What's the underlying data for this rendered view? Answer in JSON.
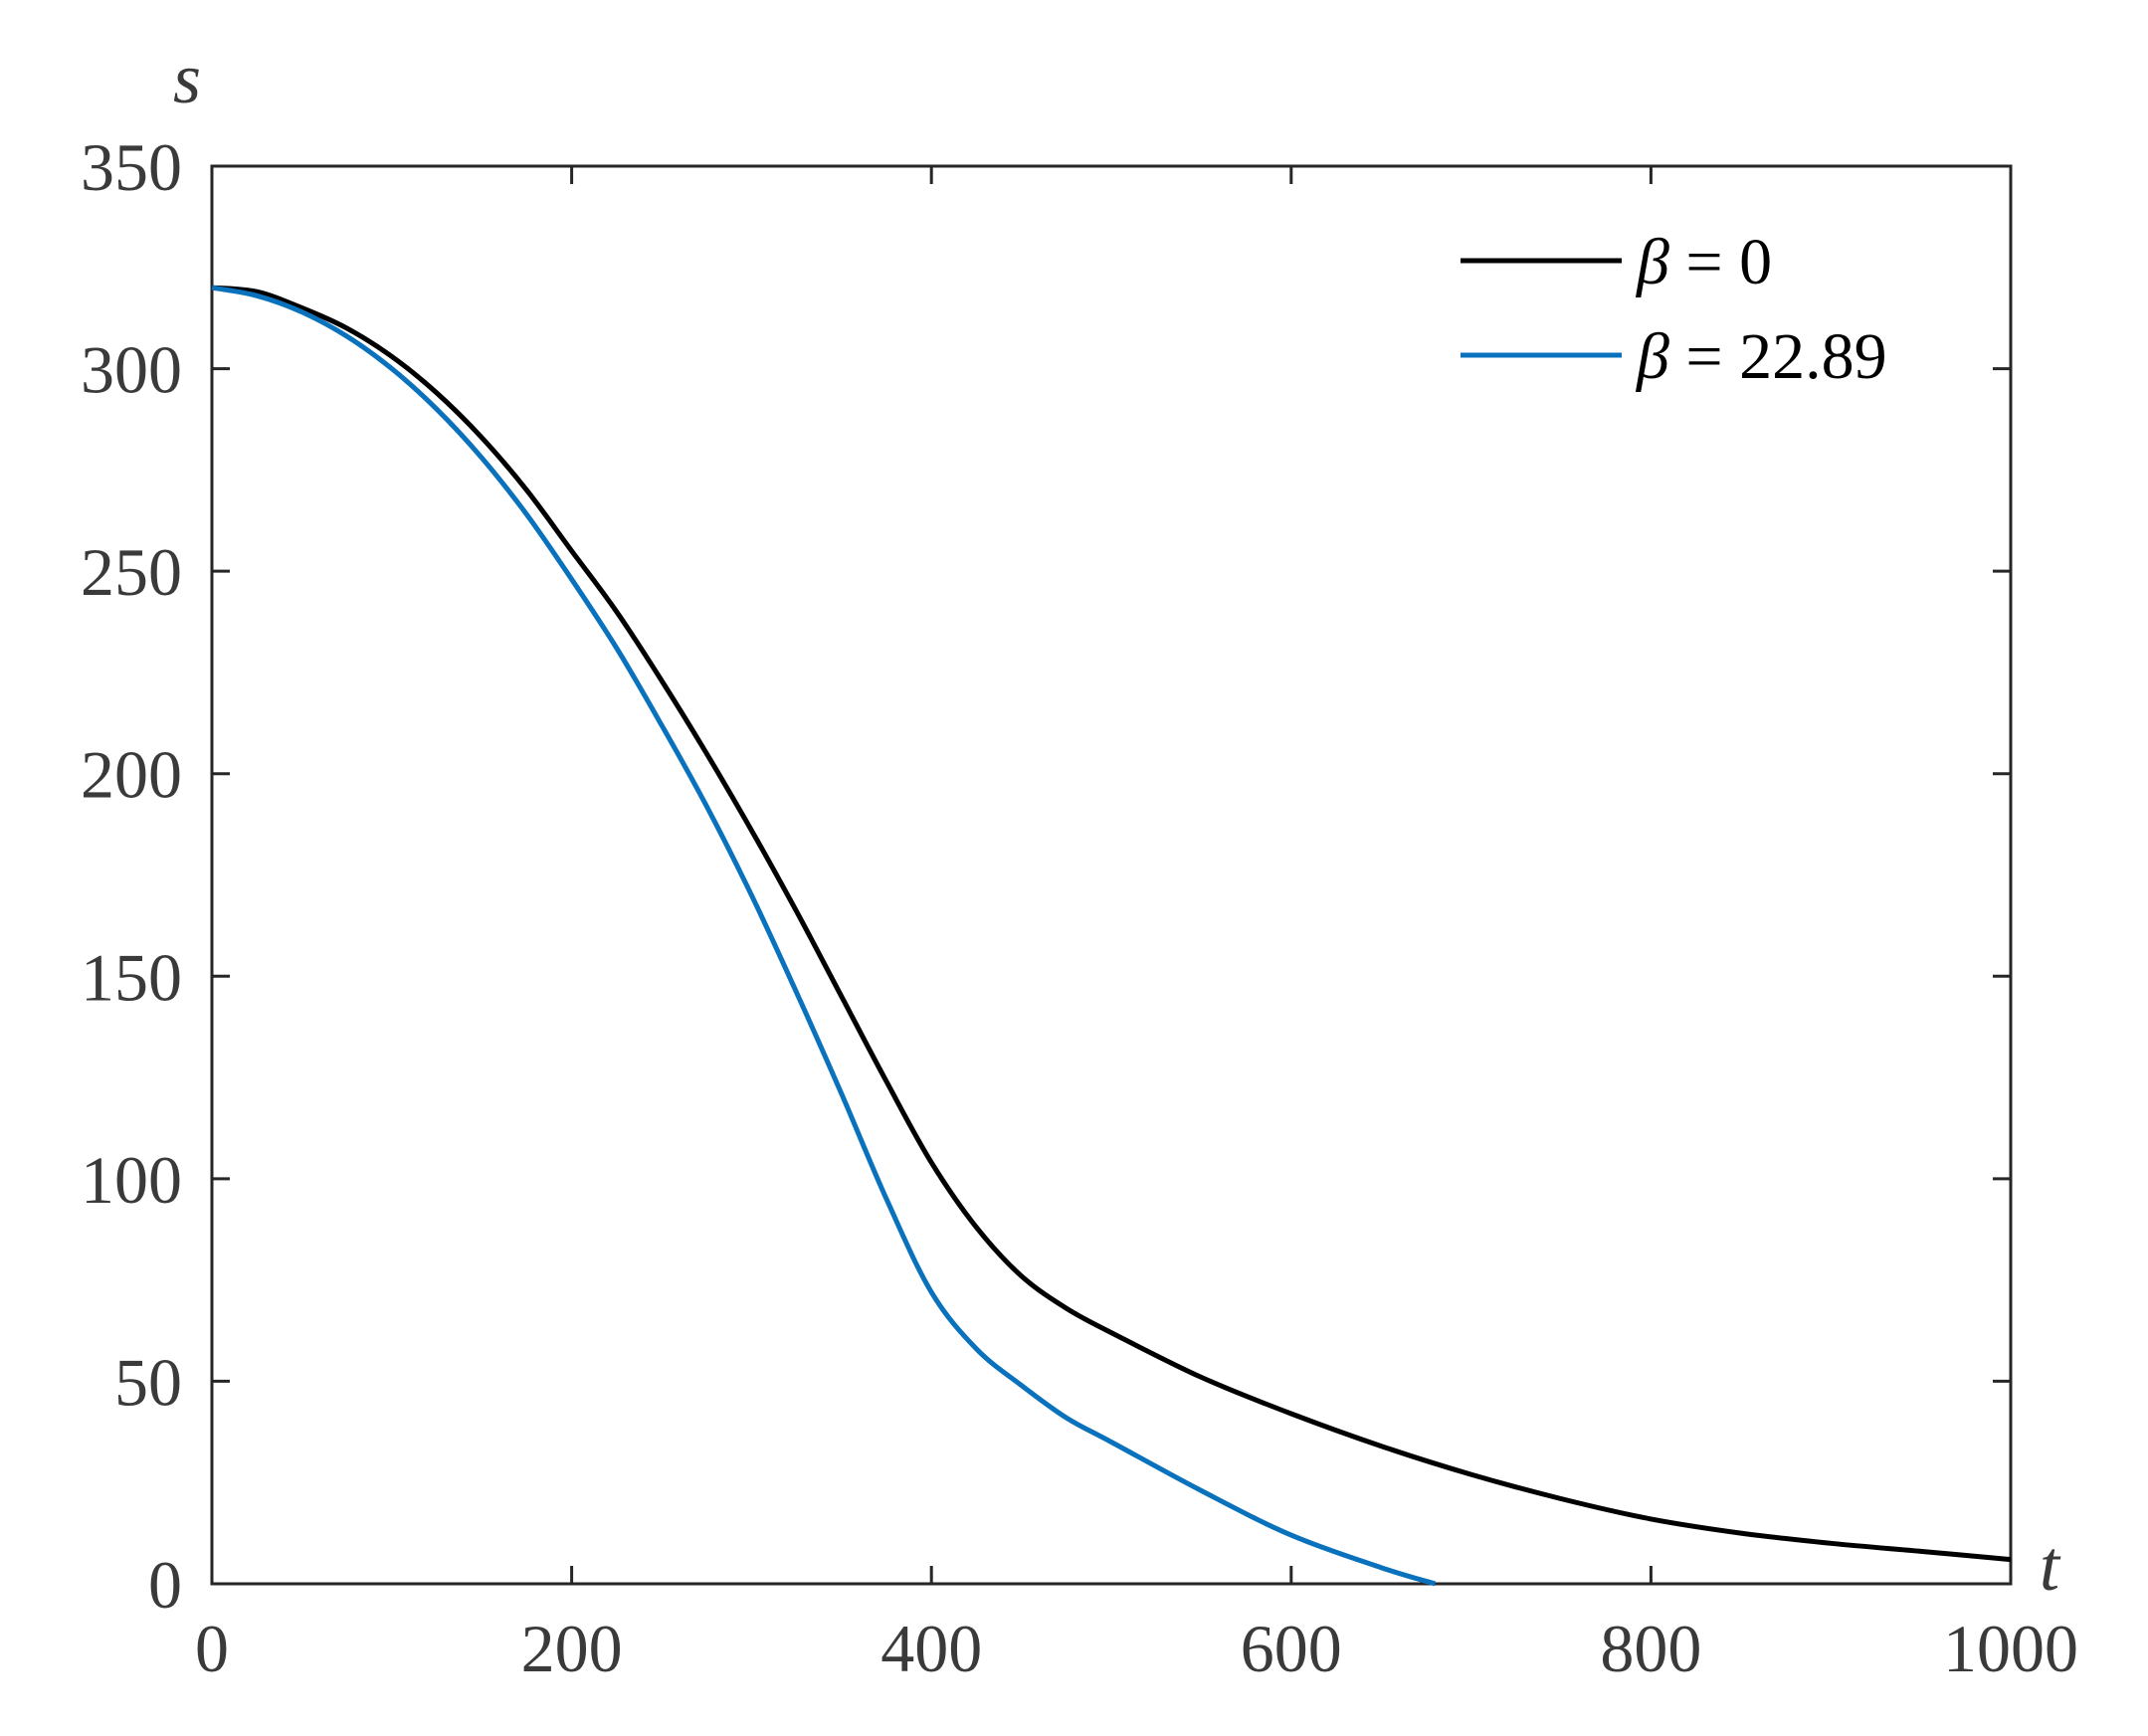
{
  "chart_data": {
    "type": "line",
    "xlabel": "t",
    "ylabel": "s",
    "xlim": [
      0,
      1000
    ],
    "ylim": [
      0,
      350
    ],
    "x_ticks": [
      0,
      200,
      400,
      600,
      800,
      1000
    ],
    "y_ticks": [
      0,
      50,
      100,
      150,
      200,
      250,
      300,
      350
    ],
    "x_tick_labels": [
      "0",
      "200",
      "400",
      "600",
      "800",
      "1000"
    ],
    "y_tick_labels": [
      "0",
      "50",
      "100",
      "150",
      "200",
      "250",
      "300",
      "350"
    ],
    "grid": false,
    "legend_position": "top-right",
    "series": [
      {
        "name": "β = 0",
        "legend_symbol": "β",
        "legend_rest": " = 0",
        "color": "#000000",
        "x": [
          0,
          25,
          50,
          75,
          100,
          125,
          150,
          175,
          200,
          225,
          250,
          275,
          300,
          325,
          350,
          375,
          400,
          425,
          450,
          475,
          500,
          550,
          600,
          650,
          700,
          750,
          800,
          850,
          900,
          950,
          1000
        ],
        "y": [
          320,
          319,
          315,
          310,
          303,
          294,
          283,
          270,
          255,
          240,
          223,
          205,
          186,
          166,
          145,
          124,
          104,
          88,
          76,
          68,
          62,
          51,
          42,
          34,
          27,
          21,
          16,
          12.5,
          10,
          8,
          6
        ]
      },
      {
        "name": "β = 22.89",
        "legend_symbol": "β",
        "legend_rest": " = 22.89",
        "color": "#0a72bd",
        "x": [
          0,
          25,
          50,
          75,
          100,
          125,
          150,
          175,
          200,
          225,
          250,
          275,
          300,
          325,
          350,
          375,
          400,
          425,
          450,
          475,
          500,
          550,
          600,
          650,
          680
        ],
        "y": [
          320,
          318,
          314,
          308,
          300,
          290,
          278,
          264,
          248,
          231,
          212,
          192,
          170,
          146,
          121,
          95,
          72,
          58,
          49,
          41,
          35,
          23,
          12,
          4,
          0
        ]
      }
    ]
  }
}
